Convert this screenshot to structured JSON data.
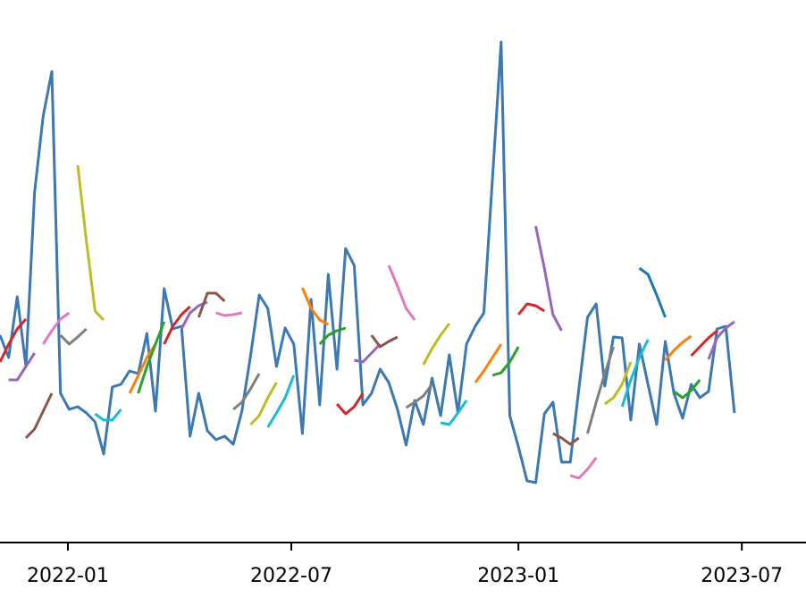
{
  "chart_data": {
    "type": "line",
    "xlim": [
      "2021-11-07",
      "2023-08-22"
    ],
    "ylim": [
      0,
      607
    ],
    "xticks": [
      {
        "value": "2022-01-01",
        "label": "2022-01"
      },
      {
        "value": "2022-07-01",
        "label": "2022-07"
      },
      {
        "value": "2023-01-01",
        "label": "2023-01"
      },
      {
        "value": "2023-07-01",
        "label": "2023-07"
      }
    ],
    "series": [
      {
        "color": "#3c78b1",
        "x": [
          "2021-11-07",
          "2021-11-14",
          "2021-11-21",
          "2021-11-28",
          "2021-12-05",
          "2021-12-12",
          "2021-12-19",
          "2021-12-26",
          "2022-01-02",
          "2022-01-09",
          "2022-01-16",
          "2022-01-23",
          "2022-01-30",
          "2022-02-06",
          "2022-02-13",
          "2022-02-20",
          "2022-02-27",
          "2022-03-06",
          "2022-03-13",
          "2022-03-20",
          "2022-03-27",
          "2022-04-03",
          "2022-04-10",
          "2022-04-17",
          "2022-04-24",
          "2022-05-01",
          "2022-05-08",
          "2022-05-15",
          "2022-05-22",
          "2022-05-29",
          "2022-06-05",
          "2022-06-12",
          "2022-06-19",
          "2022-06-26",
          "2022-07-03",
          "2022-07-10",
          "2022-07-17",
          "2022-07-24",
          "2022-07-31",
          "2022-08-07",
          "2022-08-14",
          "2022-08-21",
          "2022-08-28",
          "2022-09-04",
          "2022-09-11",
          "2022-09-18",
          "2022-09-25",
          "2022-10-02",
          "2022-10-09",
          "2022-10-16",
          "2022-10-23",
          "2022-10-30",
          "2022-11-06",
          "2022-11-13",
          "2022-11-20",
          "2022-11-27",
          "2022-12-04",
          "2022-12-11",
          "2022-12-18",
          "2022-12-25",
          "2023-01-01",
          "2023-01-08",
          "2023-01-15",
          "2023-01-22",
          "2023-01-29",
          "2023-02-05",
          "2023-02-12",
          "2023-02-19",
          "2023-02-26",
          "2023-03-05",
          "2023-03-12",
          "2023-03-19",
          "2023-03-26",
          "2023-04-02",
          "2023-04-09",
          "2023-04-16",
          "2023-04-23",
          "2023-04-30",
          "2023-05-07",
          "2023-05-14",
          "2023-05-21",
          "2023-05-28",
          "2023-06-04",
          "2023-06-11",
          "2023-06-18",
          "2023-06-25"
        ],
        "values": [
          232,
          207,
          275,
          197,
          392,
          477,
          527,
          167,
          149,
          152,
          145,
          135,
          99,
          174,
          177,
          192,
          189,
          234,
          147,
          284,
          239,
          242,
          119,
          167,
          125,
          115,
          119,
          110,
          147,
          209,
          277,
          262,
          197,
          240,
          222,
          122,
          272,
          154,
          300,
          194,
          329,
          310,
          154,
          167,
          194,
          179,
          149,
          109,
          159,
          132,
          184,
          142,
          210,
          145,
          222,
          242,
          257,
          407,
          560,
          142,
          107,
          69,
          67,
          144,
          157,
          90,
          90,
          172,
          252,
          267,
          175,
          230,
          229,
          137,
          222,
          177,
          132,
          225,
          167,
          139,
          177,
          162,
          169,
          239,
          242,
          145
        ]
      },
      {
        "color": "#d62728",
        "x": [
          "2021-11-07",
          "2021-11-14",
          "2021-11-21",
          "2021-11-28"
        ],
        "values": [
          202,
          222,
          239,
          250
        ]
      },
      {
        "color": "#9467bd",
        "x": [
          "2021-11-14",
          "2021-11-21",
          "2021-11-28",
          "2021-12-05"
        ],
        "values": [
          182,
          182,
          197,
          212
        ]
      },
      {
        "color": "#8c564b",
        "x": [
          "2021-11-28",
          "2021-12-05",
          "2021-12-12",
          "2021-12-19"
        ],
        "values": [
          117,
          127,
          147,
          167
        ]
      },
      {
        "color": "#e377c2",
        "x": [
          "2021-12-12",
          "2021-12-19",
          "2021-12-26",
          "2022-01-02"
        ],
        "values": [
          222,
          237,
          250,
          257
        ]
      },
      {
        "color": "#7f7f7f",
        "x": [
          "2021-12-26",
          "2022-01-02",
          "2022-01-09",
          "2022-01-16"
        ],
        "values": [
          232,
          222,
          230,
          239
        ]
      },
      {
        "color": "#bcbd22",
        "x": [
          "2022-01-09",
          "2022-01-16",
          "2022-01-23",
          "2022-01-30"
        ],
        "values": [
          422,
          337,
          259,
          249
        ]
      },
      {
        "color": "#17becf",
        "x": [
          "2022-01-23",
          "2022-01-30",
          "2022-02-06",
          "2022-02-13"
        ],
        "values": [
          144,
          137,
          137,
          149
        ]
      },
      {
        "color": "#ff7f0e",
        "x": [
          "2022-02-20",
          "2022-02-27",
          "2022-03-06",
          "2022-03-13"
        ],
        "values": [
          167,
          187,
          207,
          222
        ]
      },
      {
        "color": "#2ca02c",
        "x": [
          "2022-02-27",
          "2022-03-06",
          "2022-03-13",
          "2022-03-20"
        ],
        "values": [
          167,
          197,
          222,
          247
        ]
      },
      {
        "color": "#d62728",
        "x": [
          "2022-03-20",
          "2022-03-27",
          "2022-04-03",
          "2022-04-10"
        ],
        "values": [
          222,
          242,
          255,
          264
        ]
      },
      {
        "color": "#9467bd",
        "x": [
          "2022-04-03",
          "2022-04-10",
          "2022-04-17",
          "2022-04-24"
        ],
        "values": [
          239,
          257,
          265,
          269
        ]
      },
      {
        "color": "#8c564b",
        "x": [
          "2022-04-17",
          "2022-04-24",
          "2022-05-01",
          "2022-05-08"
        ],
        "values": [
          252,
          279,
          279,
          270
        ]
      },
      {
        "color": "#e377c2",
        "x": [
          "2022-05-01",
          "2022-05-08",
          "2022-05-15",
          "2022-05-22"
        ],
        "values": [
          257,
          254,
          255,
          257
        ]
      },
      {
        "color": "#7f7f7f",
        "x": [
          "2022-05-15",
          "2022-05-22",
          "2022-05-29",
          "2022-06-05"
        ],
        "values": [
          149,
          157,
          172,
          189
        ]
      },
      {
        "color": "#bcbd22",
        "x": [
          "2022-05-29",
          "2022-06-05",
          "2022-06-12",
          "2022-06-19"
        ],
        "values": [
          132,
          142,
          162,
          179
        ]
      },
      {
        "color": "#17becf",
        "x": [
          "2022-06-12",
          "2022-06-19",
          "2022-06-26",
          "2022-07-03"
        ],
        "values": [
          129,
          145,
          162,
          187
        ]
      },
      {
        "color": "#ff7f0e",
        "x": [
          "2022-07-10",
          "2022-07-17",
          "2022-07-24",
          "2022-07-31"
        ],
        "values": [
          285,
          262,
          249,
          244
        ]
      },
      {
        "color": "#2ca02c",
        "x": [
          "2022-07-24",
          "2022-07-31",
          "2022-08-07",
          "2022-08-14"
        ],
        "values": [
          222,
          232,
          237,
          240
        ]
      },
      {
        "color": "#d62728",
        "x": [
          "2022-08-07",
          "2022-08-14",
          "2022-08-21",
          "2022-08-28"
        ],
        "values": [
          155,
          144,
          152,
          167
        ]
      },
      {
        "color": "#9467bd",
        "x": [
          "2022-08-21",
          "2022-08-28",
          "2022-09-04",
          "2022-09-11"
        ],
        "values": [
          204,
          202,
          212,
          222
        ]
      },
      {
        "color": "#8c564b",
        "x": [
          "2022-09-04",
          "2022-09-11",
          "2022-09-18",
          "2022-09-25"
        ],
        "values": [
          232,
          219,
          225,
          230
        ]
      },
      {
        "color": "#e377c2",
        "x": [
          "2022-09-18",
          "2022-09-25",
          "2022-10-02",
          "2022-10-09"
        ],
        "values": [
          310,
          287,
          262,
          249
        ]
      },
      {
        "color": "#7f7f7f",
        "x": [
          "2022-10-02",
          "2022-10-09",
          "2022-10-16",
          "2022-10-23"
        ],
        "values": [
          151,
          157,
          164,
          177
        ]
      },
      {
        "color": "#bcbd22",
        "x": [
          "2022-10-16",
          "2022-10-23",
          "2022-10-30",
          "2022-11-06"
        ],
        "values": [
          199,
          217,
          232,
          245
        ]
      },
      {
        "color": "#17becf",
        "x": [
          "2022-10-30",
          "2022-11-06",
          "2022-11-13",
          "2022-11-20"
        ],
        "values": [
          134,
          132,
          145,
          159
        ]
      },
      {
        "color": "#ff7f0e",
        "x": [
          "2022-11-27",
          "2022-12-04",
          "2022-12-11",
          "2022-12-18"
        ],
        "values": [
          179,
          192,
          207,
          222
        ]
      },
      {
        "color": "#2ca02c",
        "x": [
          "2022-12-11",
          "2022-12-18",
          "2022-12-25",
          "2023-01-01"
        ],
        "values": [
          187,
          190,
          202,
          219
        ]
      },
      {
        "color": "#d62728",
        "x": [
          "2023-01-01",
          "2023-01-08",
          "2023-01-15",
          "2023-01-22"
        ],
        "values": [
          255,
          267,
          265,
          259
        ]
      },
      {
        "color": "#9467bd",
        "x": [
          "2023-01-15",
          "2023-01-22",
          "2023-01-29",
          "2023-02-05"
        ],
        "values": [
          354,
          307,
          255,
          237
        ]
      },
      {
        "color": "#8c564b",
        "x": [
          "2023-01-29",
          "2023-02-05",
          "2023-02-12",
          "2023-02-19"
        ],
        "values": [
          122,
          117,
          110,
          117
        ]
      },
      {
        "color": "#e377c2",
        "x": [
          "2023-02-12",
          "2023-02-19",
          "2023-02-26",
          "2023-03-05"
        ],
        "values": [
          75,
          72,
          82,
          95
        ]
      },
      {
        "color": "#7f7f7f",
        "x": [
          "2023-02-26",
          "2023-03-05",
          "2023-03-12",
          "2023-03-19"
        ],
        "values": [
          122,
          157,
          189,
          219
        ]
      },
      {
        "color": "#bcbd22",
        "x": [
          "2023-03-12",
          "2023-03-19",
          "2023-03-26",
          "2023-04-02"
        ],
        "values": [
          155,
          162,
          177,
          202
        ]
      },
      {
        "color": "#17becf",
        "x": [
          "2023-03-26",
          "2023-04-02",
          "2023-04-09",
          "2023-04-16"
        ],
        "values": [
          152,
          182,
          207,
          227
        ]
      },
      {
        "color": "#1f77b4",
        "x": [
          "2023-04-09",
          "2023-04-16",
          "2023-04-23",
          "2023-04-30"
        ],
        "values": [
          307,
          300,
          277,
          252
        ]
      },
      {
        "color": "#ff7f0e",
        "x": [
          "2023-04-30",
          "2023-05-07",
          "2023-05-14",
          "2023-05-21"
        ],
        "values": [
          204,
          215,
          224,
          231
        ]
      },
      {
        "color": "#2ca02c",
        "x": [
          "2023-05-07",
          "2023-05-14",
          "2023-05-21",
          "2023-05-28"
        ],
        "values": [
          169,
          162,
          170,
          182
        ]
      },
      {
        "color": "#d62728",
        "x": [
          "2023-05-21",
          "2023-05-28",
          "2023-06-04",
          "2023-06-11"
        ],
        "values": [
          209,
          219,
          229,
          237
        ]
      },
      {
        "color": "#9467bd",
        "x": [
          "2023-06-04",
          "2023-06-11",
          "2023-06-18",
          "2023-06-25"
        ],
        "values": [
          205,
          229,
          240,
          247
        ]
      }
    ]
  }
}
